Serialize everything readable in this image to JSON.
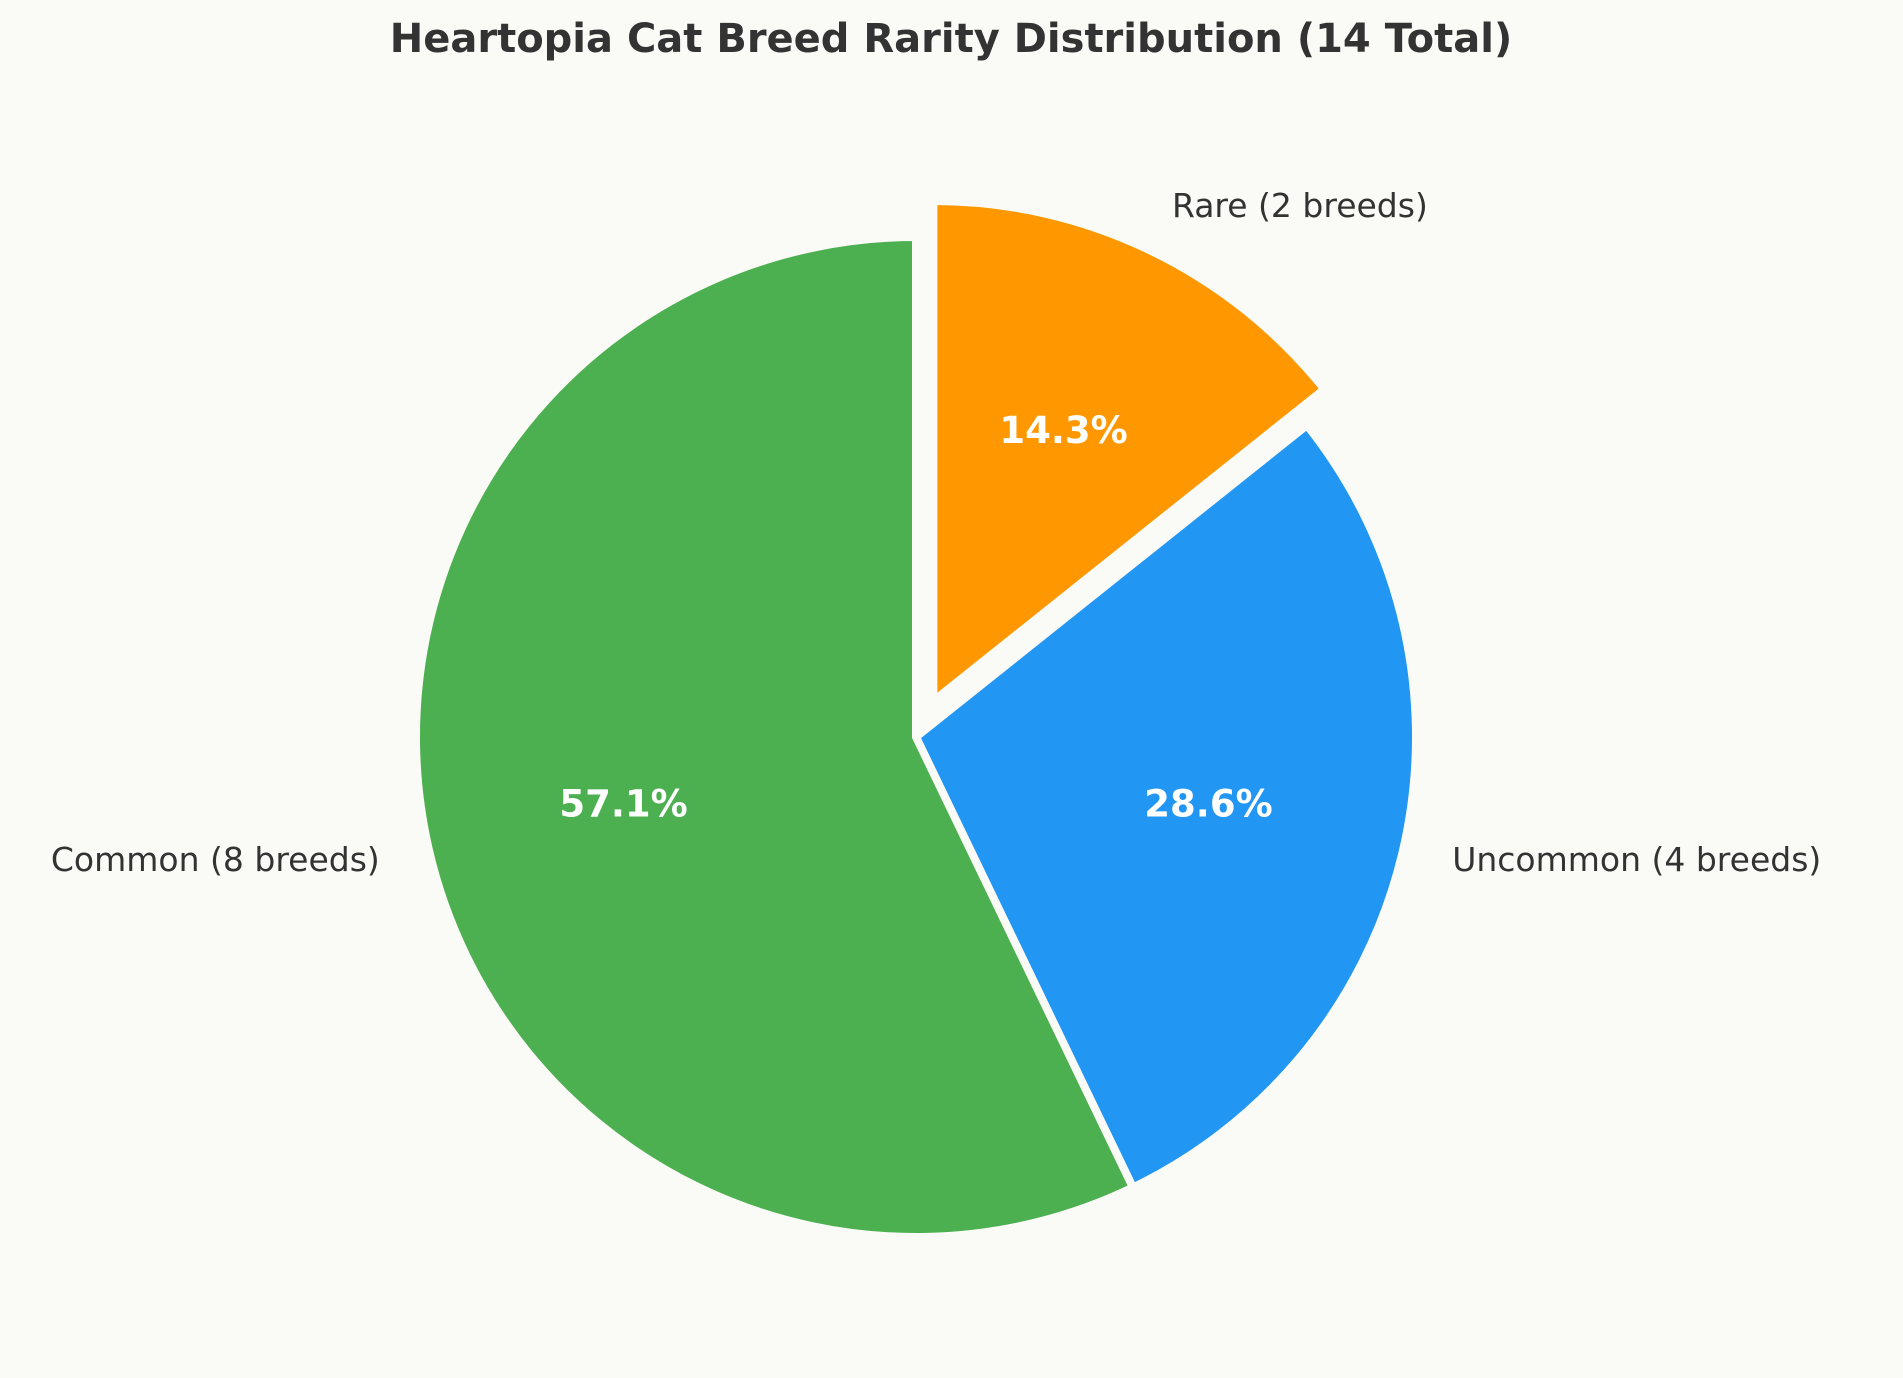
{
  "chart_data": {
    "type": "pie",
    "title": "Heartopia Cat Breed Rarity Distribution (14 Total)",
    "slices": [
      {
        "label": "Rare (2 breeds)",
        "value": 2,
        "percent_label": "14.3%",
        "color": "#ff9800",
        "exploded": true
      },
      {
        "label": "Uncommon (4 breeds)",
        "value": 4,
        "percent_label": "28.6%",
        "color": "#2196f3",
        "exploded": false
      },
      {
        "label": "Common (8 breeds)",
        "value": 8,
        "percent_label": "57.1%",
        "color": "#4caf50",
        "exploded": false
      }
    ],
    "start_angle_deg": 90,
    "direction": "clockwise",
    "legend": "none"
  }
}
